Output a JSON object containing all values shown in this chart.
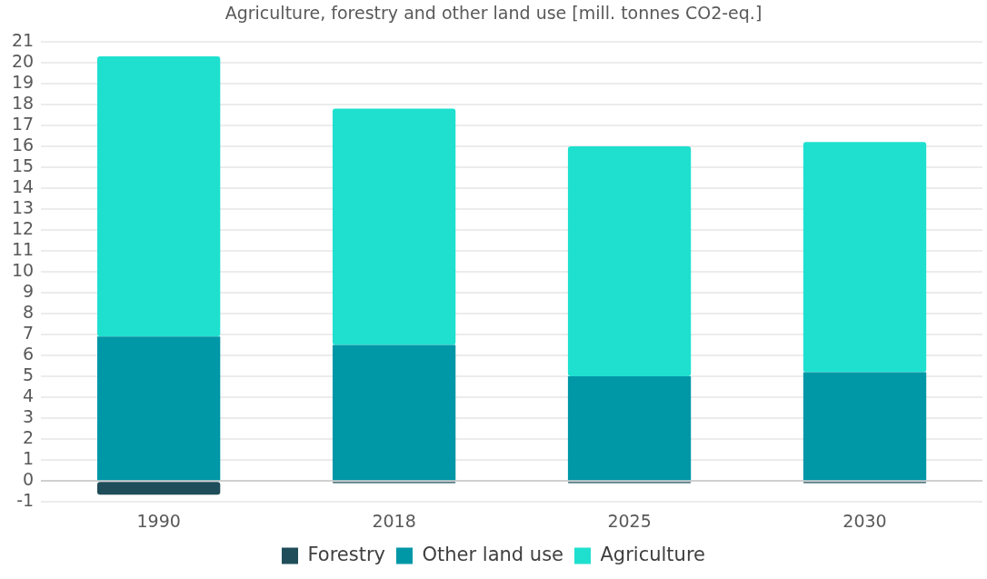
{
  "chart_data": {
    "type": "bar",
    "title": "Agriculture, forestry and other land use [mill. tonnes CO2-eq.]",
    "categories": [
      "1990",
      "2018",
      "2025",
      "2030"
    ],
    "stacked": true,
    "series": [
      {
        "name": "Forestry",
        "color": "#1f4e5a",
        "values": [
          -0.65,
          -0.1,
          -0.1,
          -0.1
        ]
      },
      {
        "name": "Other land use",
        "color": "#0097a7",
        "values": [
          6.9,
          6.5,
          5.0,
          5.2
        ]
      },
      {
        "name": "Agriculture",
        "color": "#1fe0cf",
        "values": [
          13.4,
          11.3,
          11.0,
          11.0
        ]
      }
    ],
    "ylim": [
      -1,
      21
    ],
    "yticks": [
      -1,
      0,
      1,
      2,
      3,
      4,
      5,
      6,
      7,
      8,
      9,
      10,
      11,
      12,
      13,
      14,
      15,
      16,
      17,
      18,
      19,
      20,
      21
    ],
    "grid": "y",
    "legend": "bottom"
  }
}
